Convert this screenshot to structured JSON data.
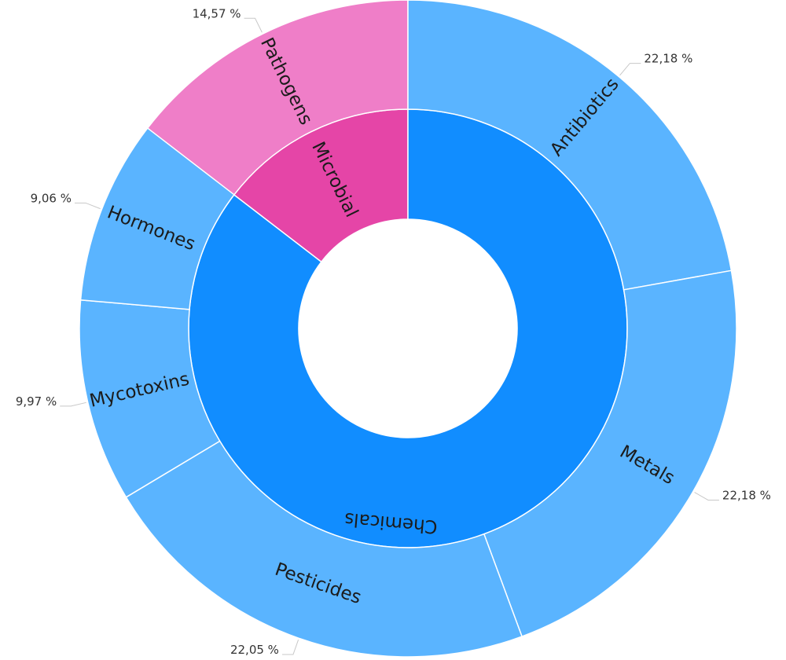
{
  "chart_data": {
    "type": "sunburst",
    "title": "",
    "inner_ring": [
      {
        "label": "Microbial",
        "value": 14.57,
        "color": "#e545a7"
      },
      {
        "label": "Chemicals",
        "value": 85.43,
        "color": "#118dff"
      }
    ],
    "outer_ring": [
      {
        "label": "Antibiotics",
        "parent": "Chemicals",
        "value": 22.18,
        "display": "22,18 %",
        "color": "#5ab4ff"
      },
      {
        "label": "Metals",
        "parent": "Chemicals",
        "value": 22.18,
        "display": "22,18 %",
        "color": "#5ab4ff"
      },
      {
        "label": "Pesticides",
        "parent": "Chemicals",
        "value": 22.05,
        "display": "22,05 %",
        "color": "#5ab4ff"
      },
      {
        "label": "Mycotoxins",
        "parent": "Chemicals",
        "value": 9.97,
        "display": "9,97 %",
        "color": "#5ab4ff"
      },
      {
        "label": "Hormones",
        "parent": "Chemicals",
        "value": 9.06,
        "display": "9,06 %",
        "color": "#5ab4ff"
      },
      {
        "label": "Pathogens",
        "parent": "Microbial",
        "value": 14.57,
        "display": "14,57 %",
        "color": "#ef7ec8"
      }
    ],
    "legend": "none"
  }
}
